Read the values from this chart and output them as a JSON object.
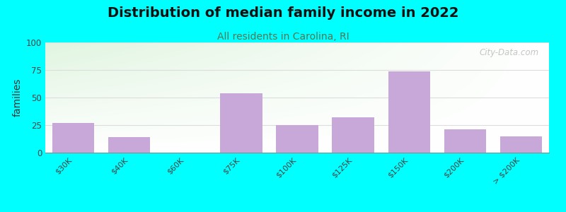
{
  "title": "Distribution of median family income in 2022",
  "subtitle": "All residents in Carolina, RI",
  "ylabel": "families",
  "background_color": "#00FFFF",
  "bar_color": "#C8A8D8",
  "categories": [
    "$30K",
    "$40K",
    "$60K",
    "$75K",
    "$100K",
    "$125K",
    "$150K",
    "$200K",
    "> $200K"
  ],
  "values": [
    27,
    14,
    0,
    54,
    25,
    32,
    74,
    21,
    15
  ],
  "ylim": [
    0,
    100
  ],
  "yticks": [
    0,
    25,
    50,
    75,
    100
  ],
  "grid_color": "#DDDDDD",
  "title_fontsize": 14,
  "subtitle_fontsize": 10,
  "subtitle_color": "#557755",
  "watermark": "City-Data.com"
}
